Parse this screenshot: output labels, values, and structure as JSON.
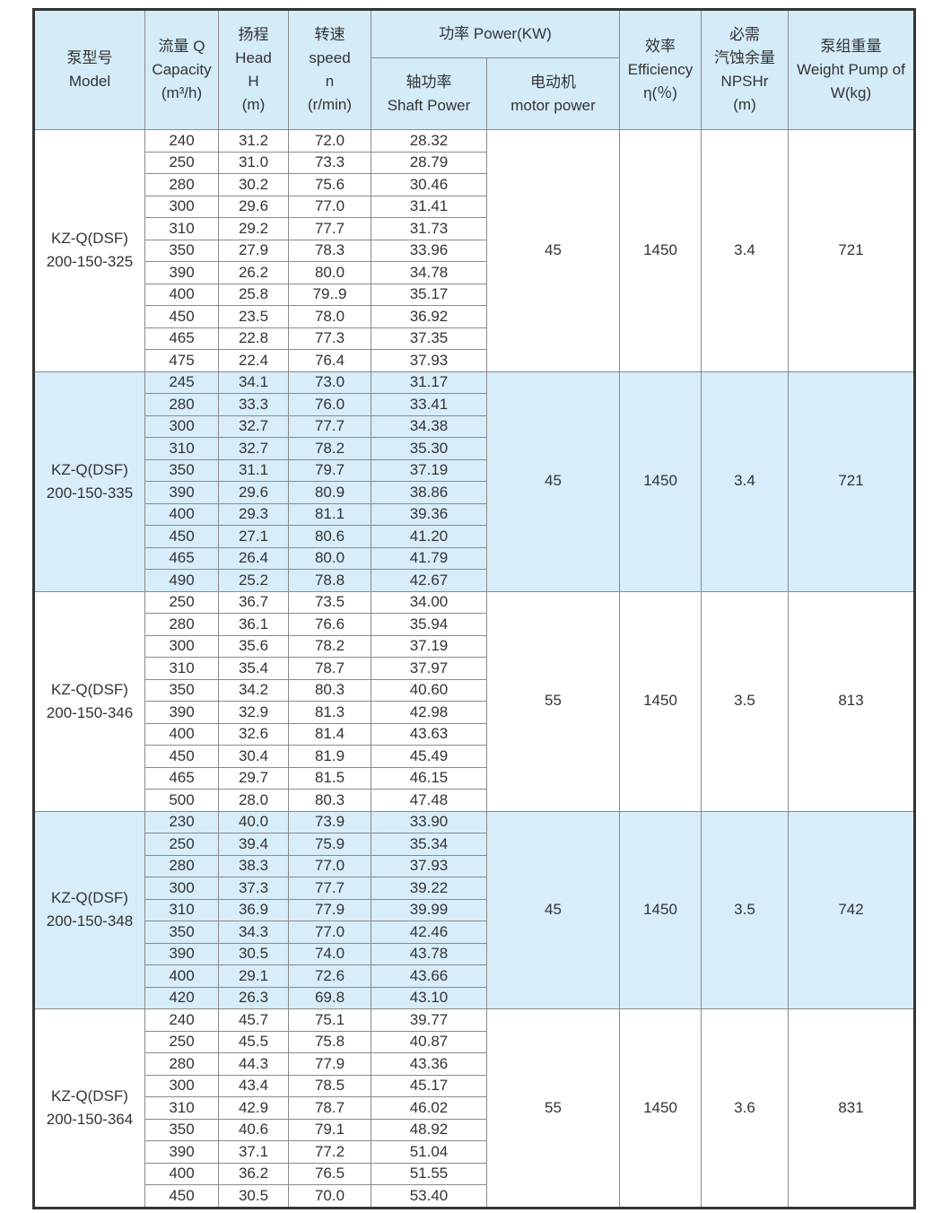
{
  "header": {
    "model": [
      "泵型号",
      "Model"
    ],
    "capacity": [
      "流量 Q",
      "Capacity",
      "(m³/h)"
    ],
    "head": [
      "扬程",
      "Head",
      "H",
      "(m)"
    ],
    "speed": [
      "转速",
      "speed",
      "n",
      "(r/min)"
    ],
    "power": "功率 Power(KW)",
    "shaft_power": [
      "轴功率",
      "Shaft Power"
    ],
    "motor_power": [
      "电动机",
      "motor power"
    ],
    "efficiency": [
      "效率",
      "Efficiency",
      "η(％)"
    ],
    "npshr": [
      "必需",
      "汽蚀余量",
      "NPSHr",
      "(m)"
    ],
    "weight": [
      "泵组重量",
      "Weight Pump of",
      "W(kg)"
    ]
  },
  "groups": [
    {
      "model": [
        "KZ-Q(DSF)",
        "200-150-325"
      ],
      "motor": "45",
      "efficiency": "1450",
      "npshr": "3.4",
      "weight": "721",
      "shaded": false,
      "rows": [
        [
          "240",
          "31.2",
          "72.0",
          "28.32"
        ],
        [
          "250",
          "31.0",
          "73.3",
          "28.79"
        ],
        [
          "280",
          "30.2",
          "75.6",
          "30.46"
        ],
        [
          "300",
          "29.6",
          "77.0",
          "31.41"
        ],
        [
          "310",
          "29.2",
          "77.7",
          "31.73"
        ],
        [
          "350",
          "27.9",
          "78.3",
          "33.96"
        ],
        [
          "390",
          "26.2",
          "80.0",
          "34.78"
        ],
        [
          "400",
          "25.8",
          "79..9",
          "35.17"
        ],
        [
          "450",
          "23.5",
          "78.0",
          "36.92"
        ],
        [
          "465",
          "22.8",
          "77.3",
          "37.35"
        ],
        [
          "475",
          "22.4",
          "76.4",
          "37.93"
        ]
      ]
    },
    {
      "model": [
        "KZ-Q(DSF)",
        "200-150-335"
      ],
      "motor": "45",
      "efficiency": "1450",
      "npshr": "3.4",
      "weight": "721",
      "shaded": true,
      "rows": [
        [
          "245",
          "34.1",
          "73.0",
          "31.17"
        ],
        [
          "280",
          "33.3",
          "76.0",
          "33.41"
        ],
        [
          "300",
          "32.7",
          "77.7",
          "34.38"
        ],
        [
          "310",
          "32.7",
          "78.2",
          "35.30"
        ],
        [
          "350",
          "31.1",
          "79.7",
          "37.19"
        ],
        [
          "390",
          "29.6",
          "80.9",
          "38.86"
        ],
        [
          "400",
          "29.3",
          "81.1",
          "39.36"
        ],
        [
          "450",
          "27.1",
          "80.6",
          "41.20"
        ],
        [
          "465",
          "26.4",
          "80.0",
          "41.79"
        ],
        [
          "490",
          "25.2",
          "78.8",
          "42.67"
        ]
      ]
    },
    {
      "model": [
        "KZ-Q(DSF)",
        "200-150-346"
      ],
      "motor": "55",
      "efficiency": "1450",
      "npshr": "3.5",
      "weight": "813",
      "shaded": false,
      "rows": [
        [
          "250",
          "36.7",
          "73.5",
          "34.00"
        ],
        [
          "280",
          "36.1",
          "76.6",
          "35.94"
        ],
        [
          "300",
          "35.6",
          "78.2",
          "37.19"
        ],
        [
          "310",
          "35.4",
          "78.7",
          "37.97"
        ],
        [
          "350",
          "34.2",
          "80.3",
          "40.60"
        ],
        [
          "390",
          "32.9",
          "81.3",
          "42.98"
        ],
        [
          "400",
          "32.6",
          "81.4",
          "43.63"
        ],
        [
          "450",
          "30.4",
          "81.9",
          "45.49"
        ],
        [
          "465",
          "29.7",
          "81.5",
          "46.15"
        ],
        [
          "500",
          "28.0",
          "80.3",
          "47.48"
        ]
      ]
    },
    {
      "model": [
        "KZ-Q(DSF)",
        "200-150-348"
      ],
      "motor": "45",
      "efficiency": "1450",
      "npshr": "3.5",
      "weight": "742",
      "shaded": true,
      "rows": [
        [
          "230",
          "40.0",
          "73.9",
          "33.90"
        ],
        [
          "250",
          "39.4",
          "75.9",
          "35.34"
        ],
        [
          "280",
          "38.3",
          "77.0",
          "37.93"
        ],
        [
          "300",
          "37.3",
          "77.7",
          "39.22"
        ],
        [
          "310",
          "36.9",
          "77.9",
          "39.99"
        ],
        [
          "350",
          "34.3",
          "77.0",
          "42.46"
        ],
        [
          "390",
          "30.5",
          "74.0",
          "43.78"
        ],
        [
          "400",
          "29.1",
          "72.6",
          "43.66"
        ],
        [
          "420",
          "26.3",
          "69.8",
          "43.10"
        ]
      ]
    },
    {
      "model": [
        "KZ-Q(DSF)",
        "200-150-364"
      ],
      "motor": "55",
      "efficiency": "1450",
      "npshr": "3.6",
      "weight": "831",
      "shaded": false,
      "rows": [
        [
          "240",
          "45.7",
          "75.1",
          "39.77"
        ],
        [
          "250",
          "45.5",
          "75.8",
          "40.87"
        ],
        [
          "280",
          "44.3",
          "77.9",
          "43.36"
        ],
        [
          "300",
          "43.4",
          "78.5",
          "45.17"
        ],
        [
          "310",
          "42.9",
          "78.7",
          "46.02"
        ],
        [
          "350",
          "40.6",
          "79.1",
          "48.92"
        ],
        [
          "390",
          "37.1",
          "77.2",
          "51.04"
        ],
        [
          "400",
          "36.2",
          "76.5",
          "51.55"
        ],
        [
          "450",
          "30.5",
          "70.0",
          "53.40"
        ]
      ]
    }
  ],
  "colors": {
    "header_bg": "#d4ebf8",
    "shaded_bg": "#d7edf9",
    "border": "#8a8a8a"
  }
}
